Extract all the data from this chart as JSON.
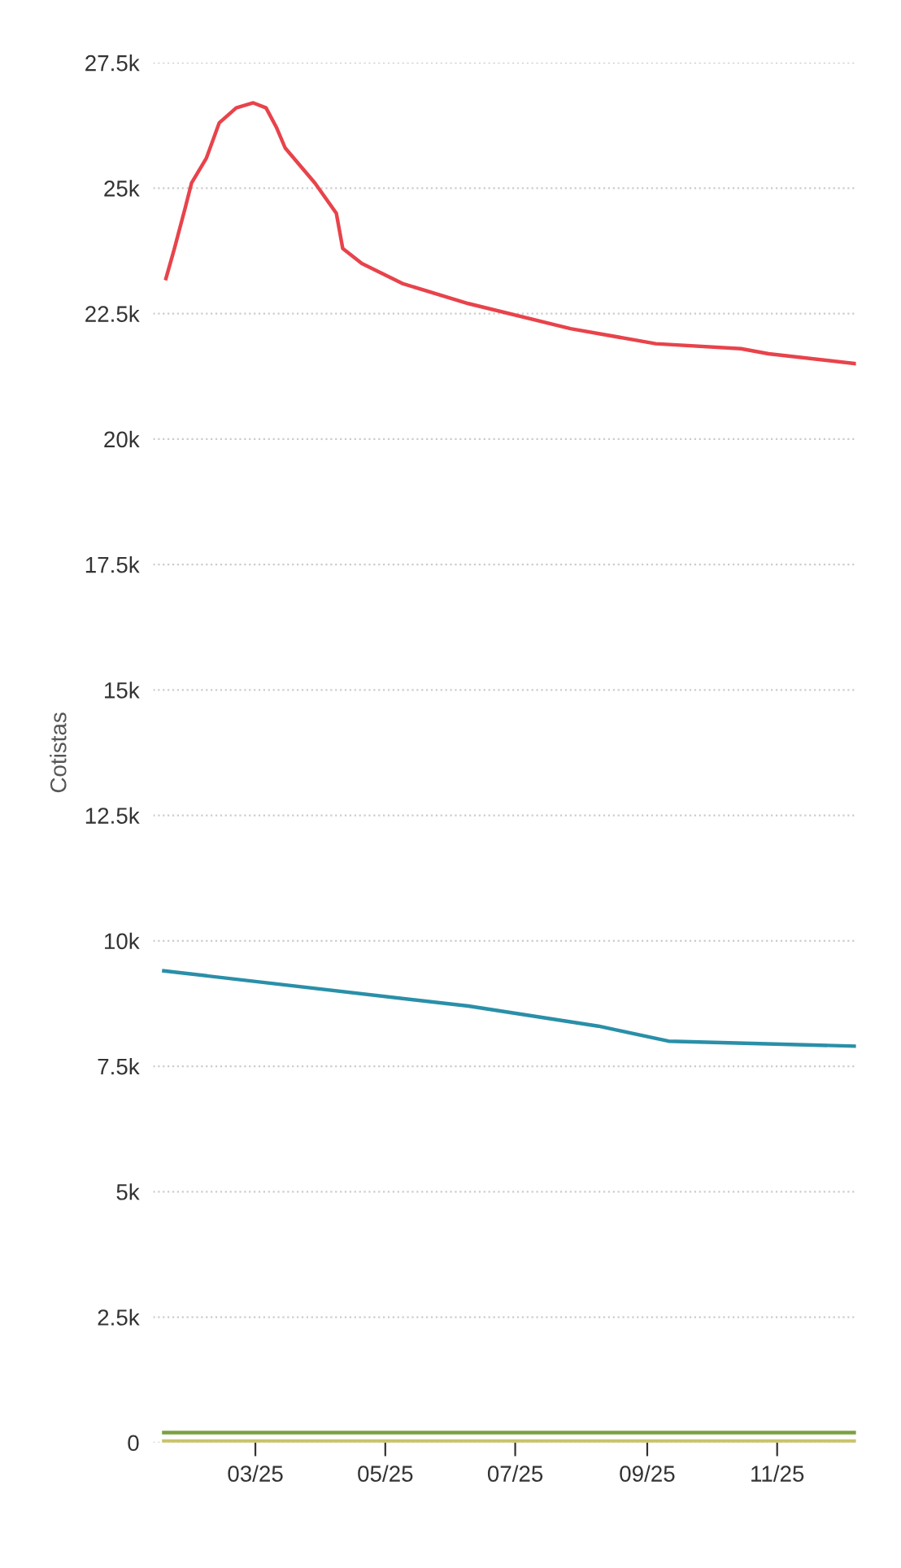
{
  "chart_data": {
    "type": "line",
    "ylabel": "Cotistas",
    "xlim": [
      "2025-01-12",
      "2025-12-08"
    ],
    "ylim": [
      0,
      27500
    ],
    "xticks": [
      {
        "value": "2025-03-01",
        "label": "03/25"
      },
      {
        "value": "2025-05-01",
        "label": "05/25"
      },
      {
        "value": "2025-07-01",
        "label": "07/25"
      },
      {
        "value": "2025-09-01",
        "label": "09/25"
      },
      {
        "value": "2025-11-01",
        "label": "11/25"
      }
    ],
    "yticks": [
      0,
      {
        "value": 2500,
        "label": "2.5k"
      },
      {
        "value": 5000,
        "label": "5k"
      },
      {
        "value": 7500,
        "label": "7.5k"
      },
      {
        "value": 10000,
        "label": "10k"
      },
      {
        "value": 12500,
        "label": "12.5k"
      },
      {
        "value": 15000,
        "label": "15k"
      },
      {
        "value": 17500,
        "label": "17.5k"
      },
      {
        "value": 20000,
        "label": "20k"
      },
      {
        "value": 22500,
        "label": "22.5k"
      },
      {
        "value": 25000,
        "label": "25k"
      },
      {
        "value": 27500,
        "label": "27.5k"
      }
    ],
    "grid": "y",
    "legend": false,
    "line_style": "solid",
    "series": [
      {
        "color": "#e8434b",
        "x": [
          "2025-01-18",
          "2025-01-22",
          "2025-01-27",
          "2025-01-30",
          "2025-02-06",
          "2025-02-12",
          "2025-02-20",
          "2025-02-28",
          "2025-03-06",
          "2025-03-11",
          "2025-03-15",
          "2025-03-29",
          "2025-04-08",
          "2025-04-11",
          "2025-04-20",
          "2025-05-09",
          "2025-06-09",
          "2025-07-27",
          "2025-09-05",
          "2025-10-15",
          "2025-10-28",
          "2025-12-08"
        ],
        "values": [
          23200,
          23800,
          24600,
          25100,
          25600,
          26300,
          26600,
          26700,
          26600,
          26200,
          25800,
          25100,
          24500,
          23800,
          23500,
          23100,
          22700,
          22200,
          21900,
          21800,
          21700,
          21500
        ]
      },
      {
        "color": "#2a8fa8",
        "x": [
          "2025-01-17",
          "2025-06-09",
          "2025-08-09",
          "2025-09-11",
          "2025-12-08"
        ],
        "values": [
          9400,
          8700,
          8300,
          8000,
          7900
        ]
      },
      {
        "color": "#7aa040",
        "x": [
          "2025-01-17",
          "2025-12-08"
        ],
        "values": [
          200,
          200
        ]
      },
      {
        "color": "#c9c36a",
        "x": [
          "2025-01-17",
          "2025-12-08"
        ],
        "values": [
          30,
          30
        ]
      }
    ]
  }
}
